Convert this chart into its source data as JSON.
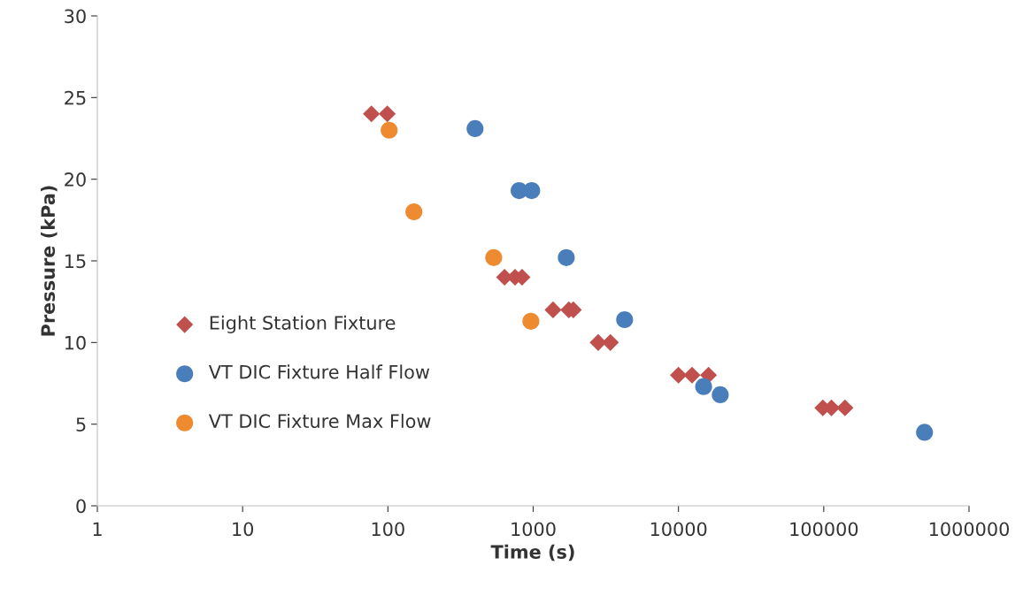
{
  "chart_data": {
    "type": "scatter",
    "xlabel": "Time (s)",
    "ylabel": "Pressure (kPa)",
    "log": "x",
    "grid": false,
    "legend": "left",
    "xlim": [
      1,
      1000000
    ],
    "xticks": [
      1,
      10,
      100,
      1000,
      10000,
      100000,
      1000000
    ],
    "ylim": [
      0,
      30
    ],
    "yticks": [
      0,
      5,
      10,
      15,
      20,
      25,
      30
    ],
    "series": [
      {
        "name": "Eight Station Fixture",
        "color": "#c0504d",
        "marker": "diamond",
        "x": [
          77,
          99,
          635,
          750,
          838,
          1370,
          1760,
          1890,
          2800,
          3400,
          10000,
          12400,
          16100,
          98600,
          113000,
          140000
        ],
        "values": [
          24,
          24,
          14,
          14,
          14,
          12,
          12,
          12,
          10,
          10,
          8,
          8,
          8,
          6,
          6,
          6
        ]
      },
      {
        "name": "VT DIC Fixture Half Flow",
        "color": "#4a7ebb",
        "marker": "circle",
        "x": [
          398,
          800,
          977,
          1690,
          4260,
          14900,
          19400,
          494000
        ],
        "values": [
          23.1,
          19.3,
          19.3,
          15.2,
          11.4,
          7.3,
          6.8,
          4.5
        ]
      },
      {
        "name": "VT DIC Fixture Max Flow",
        "color": "#ee8b31",
        "marker": "circle",
        "x": [
          102,
          151,
          535,
          964
        ],
        "values": [
          23,
          18,
          15.2,
          11.3
        ]
      }
    ]
  }
}
